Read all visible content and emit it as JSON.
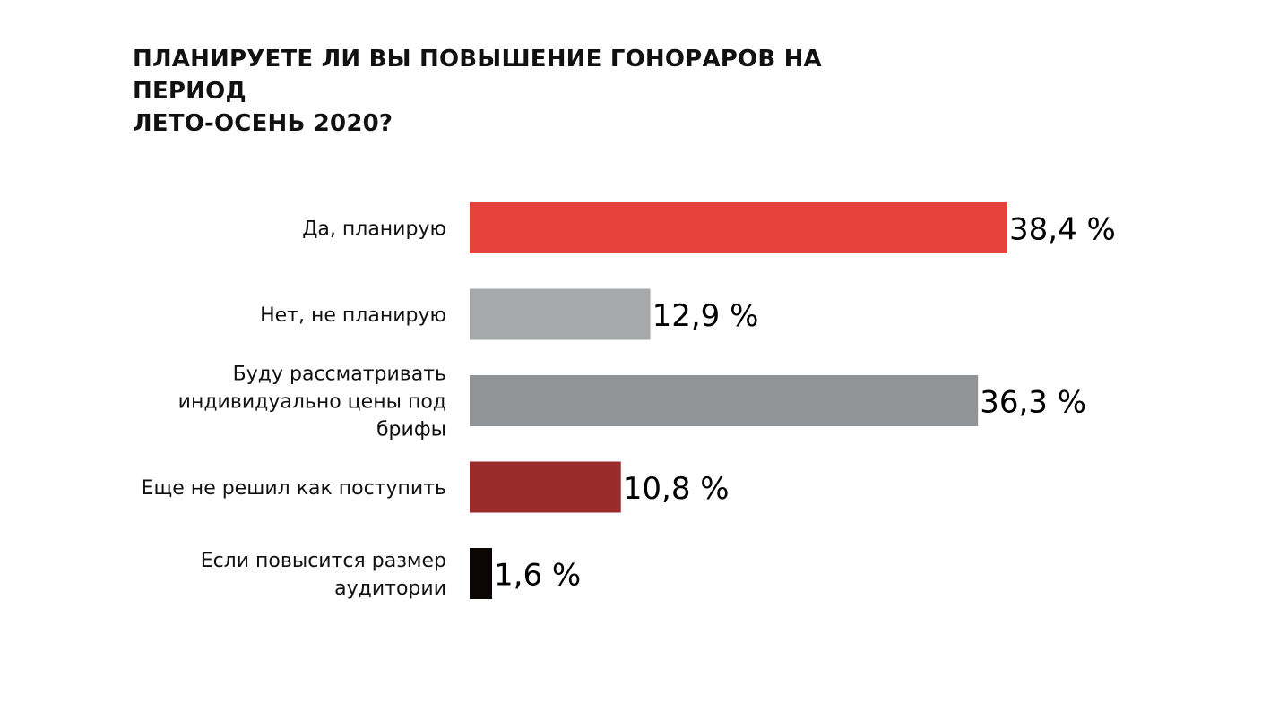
{
  "chart_data": {
    "type": "bar",
    "orientation": "horizontal",
    "title": "ПЛАНИРУЕТЕ ЛИ ВЫ ПОВЫШЕНИЕ ГОНОРАРОВ НА ПЕРИОД\nЛЕТО-ОСЕНЬ 2020?",
    "categories": [
      "Да, планирую",
      "Нет, не планирую",
      "Буду рассматривать\nиндивидуально цены под\nбрифы",
      "Еще не решил как поступить",
      "Если повысится размер\nаудитории"
    ],
    "values": [
      38.4,
      12.9,
      36.3,
      10.8,
      1.6
    ],
    "value_labels": [
      "38,4 %",
      "12,9 %",
      "36,3 %",
      "10,8 %",
      "1,6 %"
    ],
    "colors": [
      "#e6423b",
      "#a6a8a9",
      "#929395",
      "#9a2b2a",
      "#0d0606"
    ],
    "unit": "%",
    "xlim": [
      0,
      38.4
    ],
    "grid": false,
    "legend": "none"
  }
}
